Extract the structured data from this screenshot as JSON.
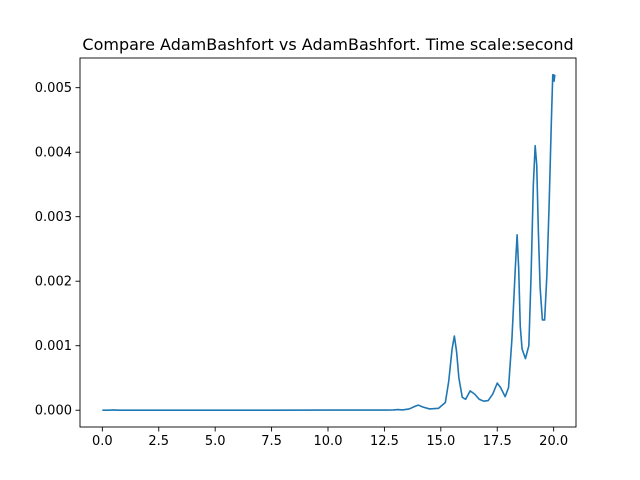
{
  "chart_data": {
    "type": "line",
    "title": "Compare AdamBashfort vs AdamBashfort. Time scale:second",
    "xlabel": "",
    "ylabel": "",
    "xlim": [
      -0.99,
      20.99
    ],
    "ylim": [
      -0.00026,
      0.00546
    ],
    "grid": false,
    "legend": "none",
    "line_color": "#1f77b4",
    "x_ticks": [
      0.0,
      2.5,
      5.0,
      7.5,
      10.0,
      12.5,
      15.0,
      17.5,
      20.0
    ],
    "x_tick_labels": [
      "0.0",
      "2.5",
      "5.0",
      "7.5",
      "10.0",
      "12.5",
      "15.0",
      "17.5",
      "20.0"
    ],
    "y_ticks": [
      0.0,
      0.001,
      0.002,
      0.003,
      0.004,
      0.005
    ],
    "y_tick_labels": [
      "0.000",
      "0.001",
      "0.002",
      "0.003",
      "0.004",
      "0.005"
    ],
    "series": [
      {
        "x": [
          0.0,
          0.3,
          0.5,
          0.7,
          1.0,
          2.5,
          5.0,
          7.5,
          10.0,
          12.5,
          12.9,
          13.1,
          13.3,
          13.6,
          13.85,
          14.0,
          14.2,
          14.5,
          14.9,
          15.2,
          15.35,
          15.5,
          15.6,
          15.7,
          15.8,
          15.95,
          16.1,
          16.3,
          16.5,
          16.7,
          16.9,
          17.1,
          17.3,
          17.5,
          17.65,
          17.85,
          18.0,
          18.15,
          18.3,
          18.38,
          18.45,
          18.52,
          18.6,
          18.75,
          18.9,
          19.0,
          19.1,
          19.18,
          19.25,
          19.32,
          19.4,
          19.5,
          19.6,
          19.7,
          19.8,
          19.9,
          19.96,
          20.0,
          20.02,
          20.05
        ],
        "y": [
          0.0,
          0.0,
          5e-06,
          0.0,
          0.0,
          0.0,
          0.0,
          0.0,
          2e-06,
          3e-06,
          5e-06,
          1e-05,
          5e-06,
          2e-05,
          6e-05,
          8e-05,
          5e-05,
          2e-05,
          3e-05,
          0.00012,
          0.00045,
          0.00095,
          0.00115,
          0.0009,
          0.0005,
          0.0002,
          0.00017,
          0.0003,
          0.00025,
          0.00017,
          0.00014,
          0.00015,
          0.00025,
          0.00042,
          0.00035,
          0.00021,
          0.00035,
          0.0011,
          0.0022,
          0.00272,
          0.0022,
          0.0013,
          0.00095,
          0.0008,
          0.001,
          0.0021,
          0.0035,
          0.0041,
          0.0038,
          0.0028,
          0.0019,
          0.0014,
          0.0014,
          0.0021,
          0.0032,
          0.0045,
          0.0052,
          0.0052,
          0.0051,
          0.0052
        ]
      }
    ]
  }
}
